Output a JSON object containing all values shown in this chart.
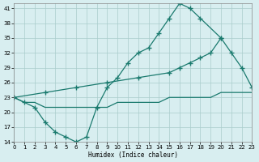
{
  "curve_a_x": [
    0,
    1,
    2,
    3,
    4,
    5,
    6,
    7,
    8,
    9,
    10,
    11,
    12,
    13,
    14,
    15,
    16,
    17,
    18,
    20
  ],
  "curve_a_y": [
    23,
    22,
    21,
    18,
    16,
    15,
    14,
    15,
    21,
    25,
    27,
    30,
    32,
    33,
    36,
    39,
    42,
    41,
    39,
    35
  ],
  "curve_b_x": [
    0,
    3,
    6,
    9,
    12,
    15,
    16,
    17,
    18,
    19,
    20,
    21,
    22,
    23
  ],
  "curve_b_y": [
    23,
    24,
    25,
    26,
    27,
    28,
    29,
    30,
    31,
    32,
    35,
    32,
    29,
    25
  ],
  "curve_c_x": [
    0,
    1,
    2,
    3,
    4,
    5,
    6,
    7,
    8,
    9,
    10,
    11,
    12,
    13,
    14,
    15,
    16,
    17,
    18,
    19,
    20,
    21,
    22,
    23
  ],
  "curve_c_y": [
    23,
    22,
    22,
    21,
    21,
    21,
    21,
    21,
    21,
    21,
    22,
    22,
    22,
    22,
    22,
    23,
    23,
    23,
    23,
    23,
    24,
    24,
    24,
    24
  ],
  "color": "#1a7a6e",
  "bg_color": "#d8eef0",
  "grid_color": "#aacccc",
  "xlabel": "Humidex (Indice chaleur)",
  "xlim": [
    0,
    23
  ],
  "ylim": [
    14,
    42
  ],
  "yticks": [
    14,
    17,
    20,
    23,
    26,
    29,
    32,
    35,
    38,
    41
  ],
  "xticks": [
    0,
    1,
    2,
    3,
    4,
    5,
    6,
    7,
    8,
    9,
    10,
    11,
    12,
    13,
    14,
    15,
    16,
    17,
    18,
    19,
    20,
    21,
    22,
    23
  ]
}
